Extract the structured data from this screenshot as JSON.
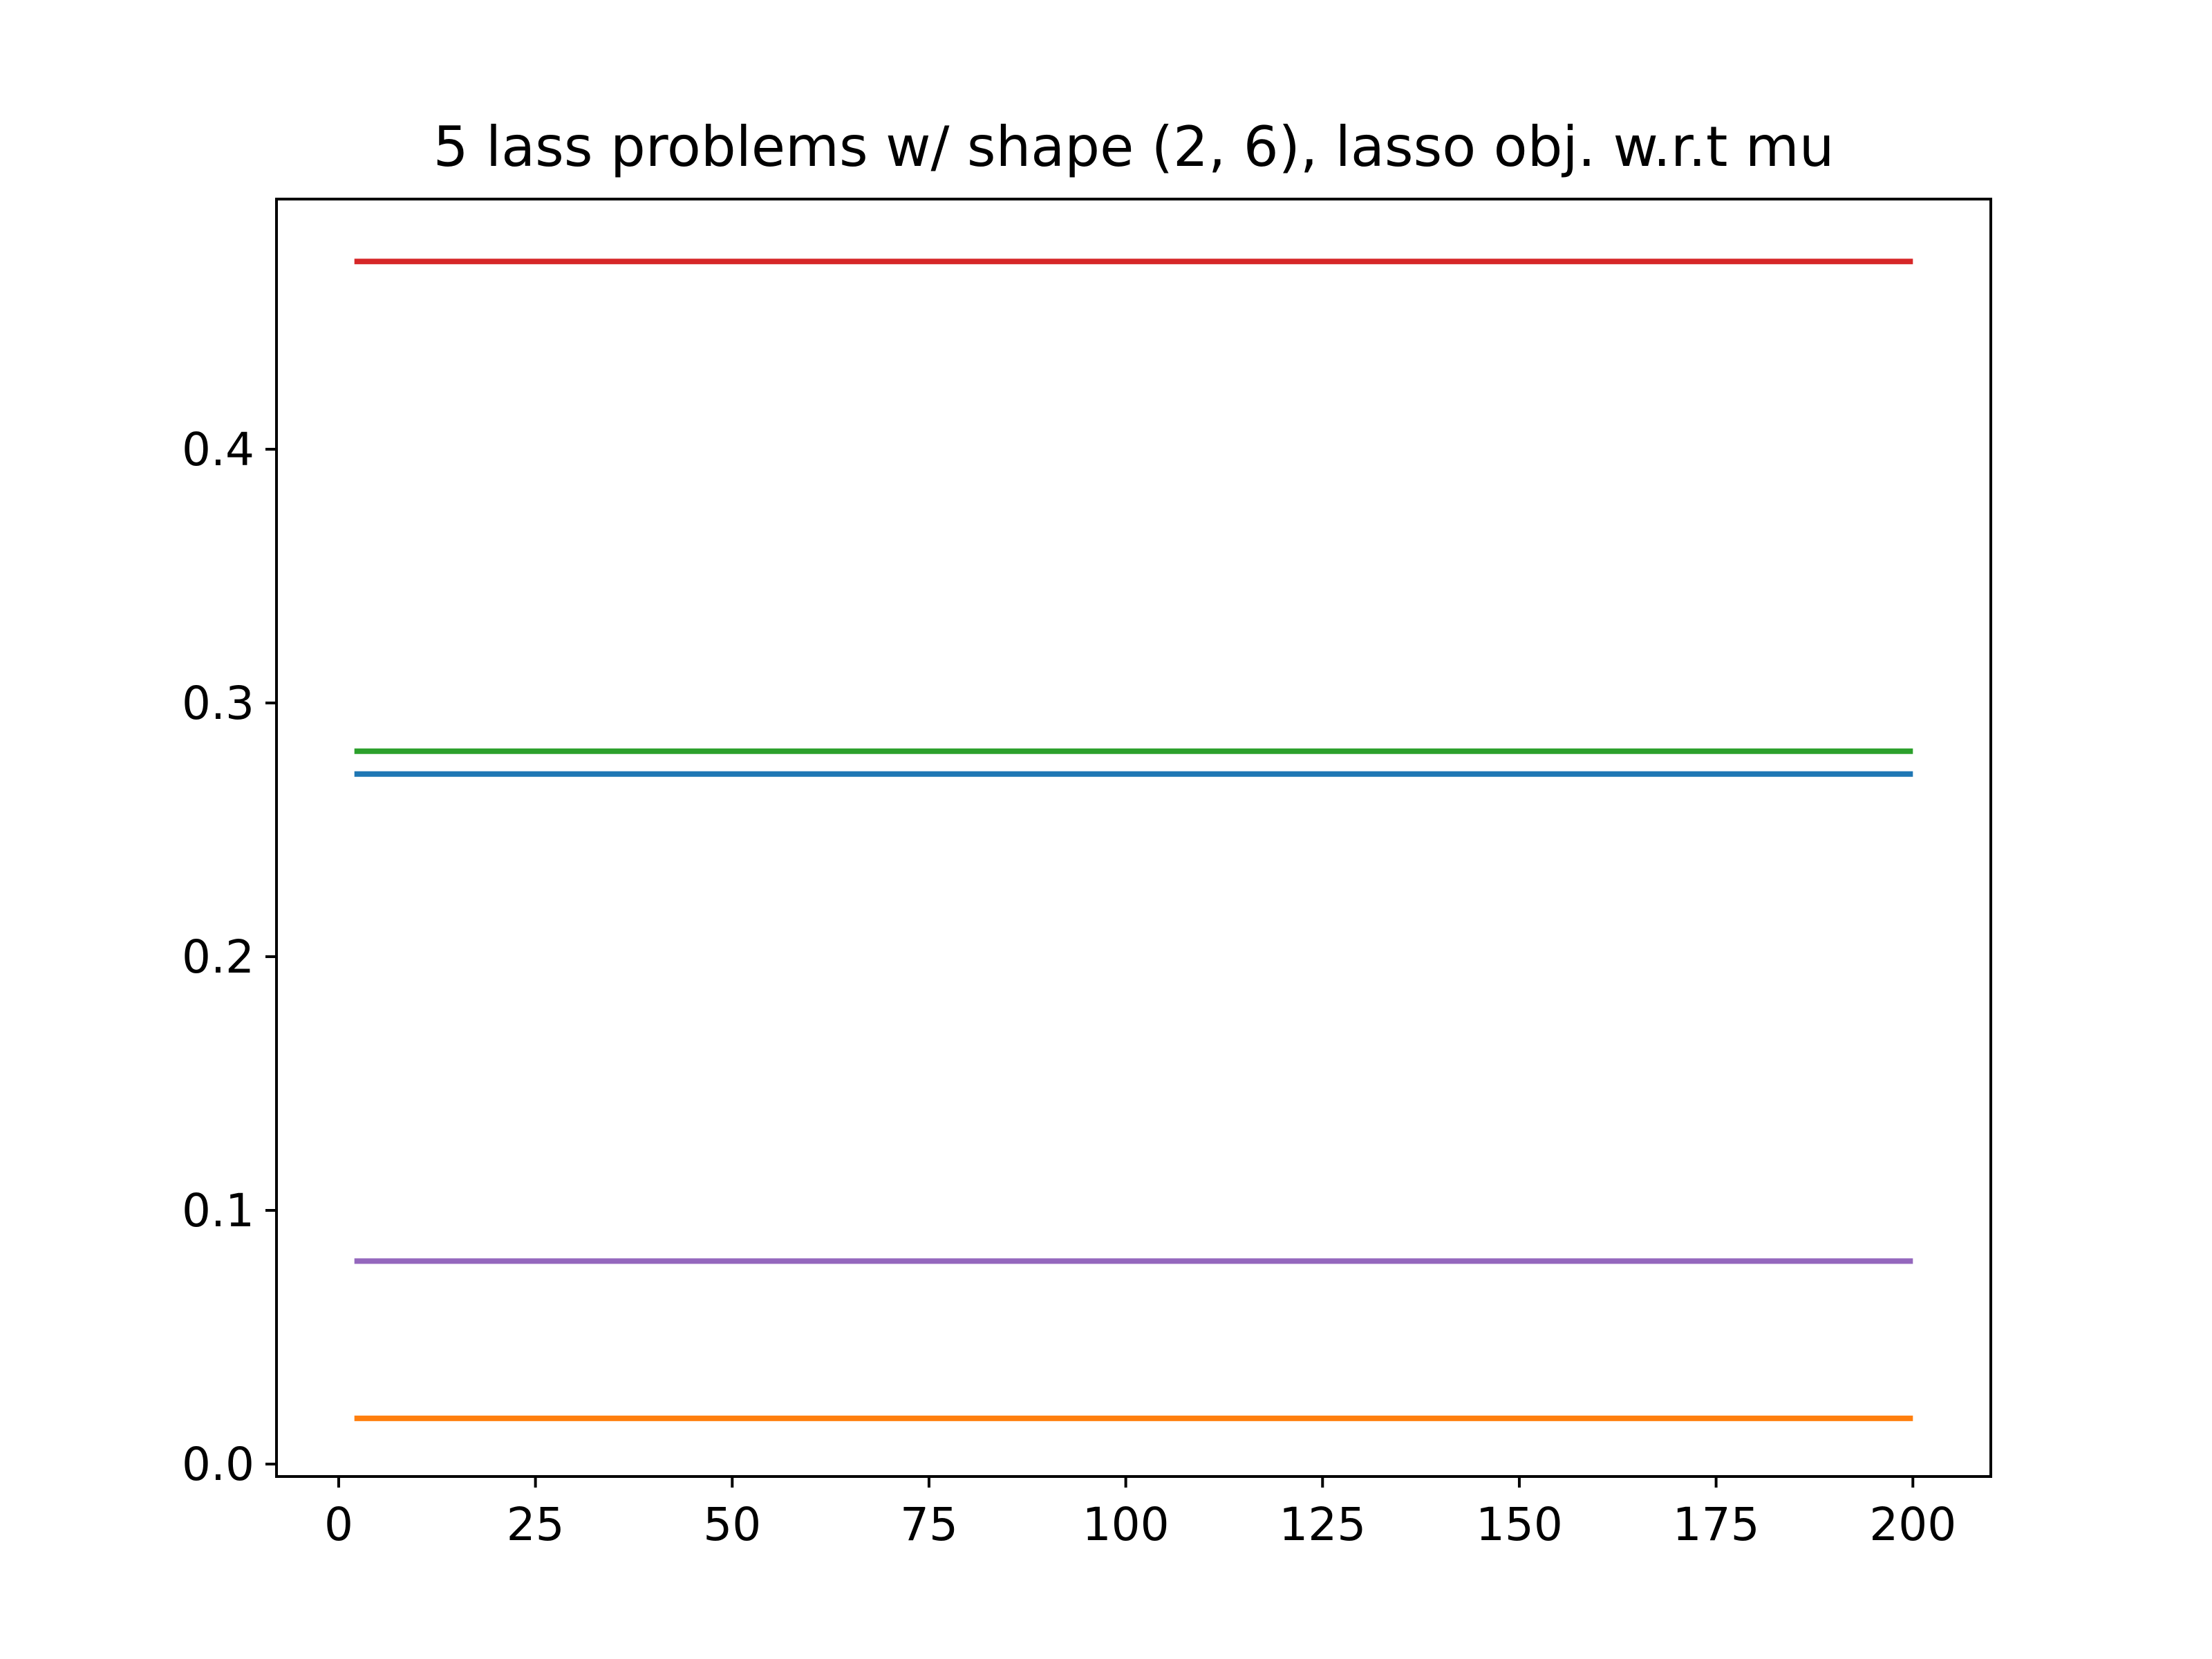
{
  "chart_data": {
    "type": "line",
    "title": "5 lass problems w/ shape (2, 6), lasso obj. w.r.t mu",
    "xlabel": "",
    "ylabel": "",
    "xlim": [
      -7.9,
      209.9
    ],
    "ylim": [
      -0.0049,
      0.4986
    ],
    "xticks": [
      0,
      25,
      50,
      75,
      100,
      125,
      150,
      175,
      200
    ],
    "xtick_labels": [
      "0",
      "25",
      "50",
      "75",
      "100",
      "125",
      "150",
      "175",
      "200"
    ],
    "yticks": [
      0.0,
      0.1,
      0.2,
      0.3,
      0.4
    ],
    "ytick_labels": [
      "0.0",
      "0.1",
      "0.2",
      "0.3",
      "0.4"
    ],
    "grid": false,
    "legend": false,
    "series": [
      {
        "x": [
          2,
          200
        ],
        "y": [
          0.272,
          0.272
        ],
        "color": "#1f77b4"
      },
      {
        "x": [
          2,
          200
        ],
        "y": [
          0.018,
          0.018
        ],
        "color": "#ff7f0e"
      },
      {
        "x": [
          2,
          200
        ],
        "y": [
          0.281,
          0.281
        ],
        "color": "#2ca02c"
      },
      {
        "x": [
          2,
          200
        ],
        "y": [
          0.474,
          0.474
        ],
        "color": "#d62728"
      },
      {
        "x": [
          2,
          200
        ],
        "y": [
          0.08,
          0.08
        ],
        "color": "#9467bd"
      }
    ]
  }
}
